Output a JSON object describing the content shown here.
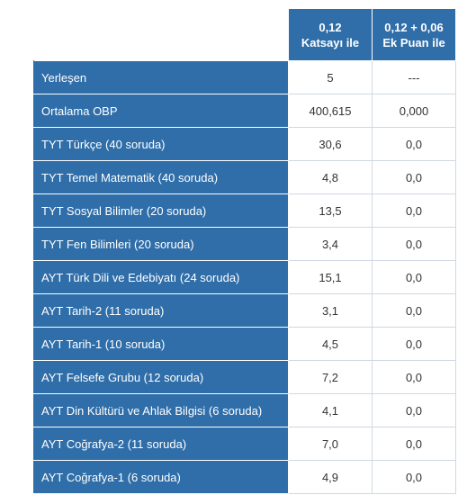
{
  "header": {
    "col1": {
      "line1": "0,12",
      "line2": "Katsayı ile"
    },
    "col2": {
      "line1": "0,12 + 0,06",
      "line2": "Ek Puan ile"
    }
  },
  "rows": [
    {
      "label": "Yerleşen",
      "v1": "5",
      "v2": "---"
    },
    {
      "label": "Ortalama OBP",
      "v1": "400,615",
      "v2": "0,000"
    },
    {
      "label": "TYT Türkçe (40 soruda)",
      "v1": "30,6",
      "v2": "0,0"
    },
    {
      "label": "TYT Temel Matematik (40 soruda)",
      "v1": "4,8",
      "v2": "0,0"
    },
    {
      "label": "TYT Sosyal Bilimler (20 soruda)",
      "v1": "13,5",
      "v2": "0,0"
    },
    {
      "label": "TYT Fen Bilimleri (20 soruda)",
      "v1": "3,4",
      "v2": "0,0"
    },
    {
      "label": "AYT Türk Dili ve Edebiyatı (24 soruda)",
      "v1": "15,1",
      "v2": "0,0"
    },
    {
      "label": "AYT Tarih-2 (11 soruda)",
      "v1": "3,1",
      "v2": "0,0"
    },
    {
      "label": "AYT Tarih-1 (10 soruda)",
      "v1": "4,5",
      "v2": "0,0"
    },
    {
      "label": "AYT Felsefe Grubu (12 soruda)",
      "v1": "7,2",
      "v2": "0,0"
    },
    {
      "label": "AYT Din Kültürü ve Ahlak Bilgisi (6 soruda)",
      "v1": "4,1",
      "v2": "0,0"
    },
    {
      "label": "AYT Coğrafya-2 (11 soruda)",
      "v1": "7,0",
      "v2": "0,0"
    },
    {
      "label": "AYT Coğrafya-1 (6 soruda)",
      "v1": "4,9",
      "v2": "0,0"
    }
  ],
  "colors": {
    "header_bg": "#2f6ea9",
    "header_text": "#ffffff",
    "cell_bg": "#ffffff",
    "cell_text": "#333333",
    "border": "#cfd8e3"
  }
}
